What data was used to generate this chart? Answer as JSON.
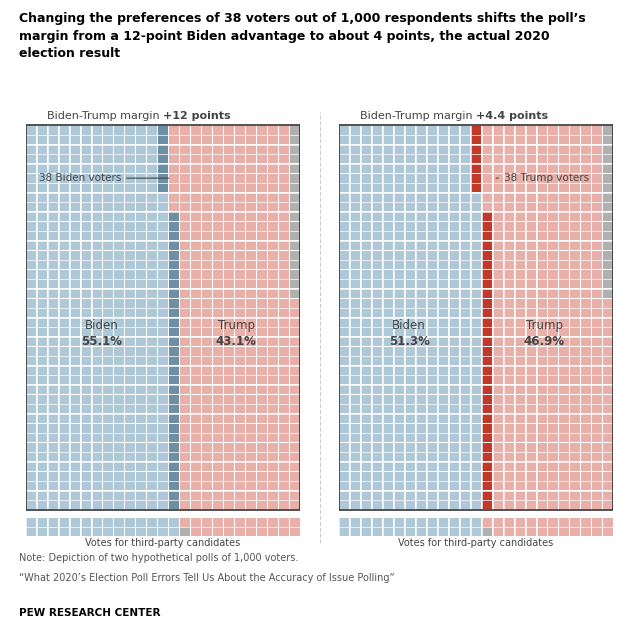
{
  "title_line1": "Changing the preferences of 38 voters out of 1,000 respondents shifts the poll’s",
  "title_line2": "margin from a 12-point Biden advantage to about 4 points, the actual 2020",
  "title_line3": "election result",
  "chart1": {
    "subtitle_plain": "Biden-Trump margin ",
    "subtitle_bold": "+12 points",
    "biden_pct": 55.1,
    "trump_pct": 43.1,
    "third_pct": 1.8,
    "highlight_label": "38 Biden voters",
    "highlight_side": "biden"
  },
  "chart2": {
    "subtitle_plain": "Biden-Trump margin ",
    "subtitle_bold": "+4.4 points",
    "biden_pct": 51.3,
    "trump_pct": 46.9,
    "third_pct": 1.8,
    "highlight_label": "38 Trump voters",
    "highlight_side": "trump"
  },
  "colors": {
    "biden_light": "#afc8d8",
    "biden_dark": "#6d8fa5",
    "trump_light": "#e8b0a8",
    "trump_dark": "#c0392b",
    "third_gray": "#b0b0b0",
    "text_dark": "#444444",
    "white": "#ffffff"
  },
  "note": "Note: Depiction of two hypothetical polls of 1,000 voters.",
  "source": "“What 2020’s Election Poll Errors Tell Us About the Accuracy of Issue Polling”",
  "footer": "PEW RESEARCH CENTER",
  "n_cols": 25,
  "n_rows": 40,
  "n_rows_third": 2
}
